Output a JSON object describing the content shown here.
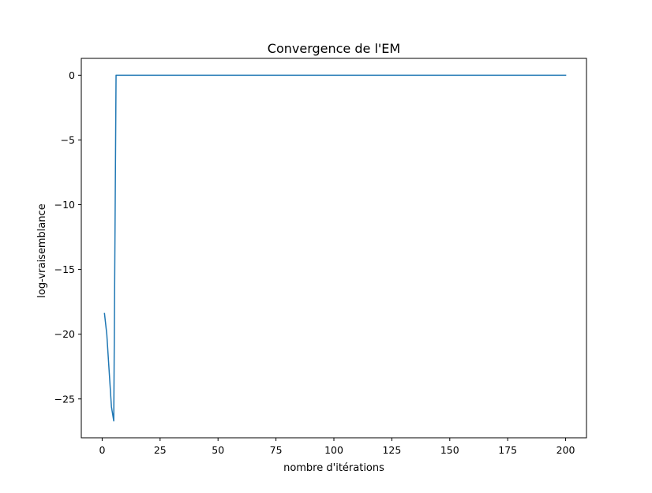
{
  "chart_data": {
    "type": "line",
    "title": "Convergence de l'EM",
    "xlabel": "nombre d'itérations",
    "ylabel": "log-vraisemblance",
    "xlim": [
      -9,
      209
    ],
    "ylim": [
      -28.0,
      1.3
    ],
    "grid": false,
    "legend": "none",
    "xticks": [
      0,
      25,
      50,
      75,
      100,
      125,
      150,
      175,
      200
    ],
    "xtick_labels": [
      "0",
      "25",
      "50",
      "75",
      "100",
      "125",
      "150",
      "175",
      "200"
    ],
    "yticks": [
      0,
      -5,
      -10,
      -15,
      -20,
      -25
    ],
    "ytick_labels": [
      "0",
      "−5",
      "−10",
      "−15",
      "−20",
      "−25"
    ],
    "series": [
      {
        "color": "#1f77b4",
        "x": [
          1,
          2,
          3,
          4,
          5,
          6,
          200
        ],
        "y": [
          -18.4,
          -20.0,
          -22.8,
          -25.6,
          -26.7,
          0.0,
          0.0
        ]
      }
    ]
  }
}
